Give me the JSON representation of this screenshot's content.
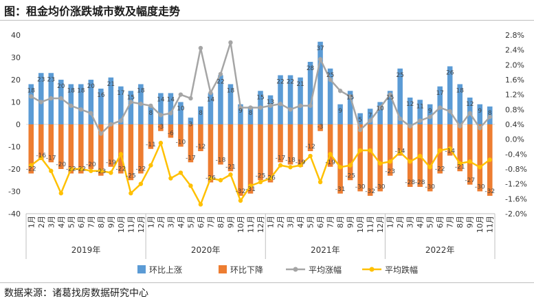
{
  "title": "图：租金均价涨跌城市数及幅度走势",
  "source": "数据来源：诸葛找房数据研究中心",
  "chart_data": {
    "type": "bar+line",
    "categories": [
      "1月",
      "2月",
      "3月",
      "4月",
      "5月",
      "6月",
      "7月",
      "8月",
      "9月",
      "10月",
      "11月",
      "12月",
      "1月",
      "2月",
      "3月",
      "4月",
      "5月",
      "6月",
      "7月",
      "8月",
      "9月",
      "10月",
      "11月",
      "12月",
      "1月",
      "2月",
      "3月",
      "4月",
      "5月",
      "6月",
      "7月",
      "8月",
      "9月",
      "10月",
      "11月",
      "12月",
      "1月",
      "2月",
      "3月",
      "4月",
      "5月",
      "6月",
      "7月",
      "8月",
      "9月",
      "10月",
      "11月"
    ],
    "year_groups": [
      {
        "label": "2019年",
        "count": 12
      },
      {
        "label": "2020年",
        "count": 12
      },
      {
        "label": "2021年",
        "count": 12
      },
      {
        "label": "2022年",
        "count": 11
      }
    ],
    "left_axis": {
      "min": -40,
      "max": 40,
      "ticks": [
        40,
        30,
        20,
        10,
        0,
        -10,
        -20,
        -30,
        -40
      ]
    },
    "right_axis": {
      "min": -2.0,
      "max": 2.8,
      "ticks": [
        "2.8%",
        "2.4%",
        "2.0%",
        "1.6%",
        "1.2%",
        "0.8%",
        "0.4%",
        "0.0%",
        "-0.4%",
        "-0.8%",
        "-1.2%",
        "-1.6%",
        "-2.0%"
      ]
    },
    "series": [
      {
        "name": "环比上涨",
        "kind": "bar",
        "axis": "left",
        "color": "#5b9bd5",
        "values": [
          18,
          23,
          23,
          20,
          18,
          18,
          20,
          16,
          21,
          17,
          15,
          18,
          8,
          14,
          14,
          10,
          3,
          8,
          14,
          22,
          18,
          9,
          8,
          15,
          13,
          22,
          22,
          21,
          28,
          37,
          25,
          9,
          15,
          5,
          7,
          10,
          15,
          25,
          12,
          11,
          9,
          17,
          26,
          18,
          12,
          9,
          8
        ],
        "labels": [
          "18",
          "23",
          "23",
          "20",
          "18",
          "18",
          "20",
          "16",
          "21",
          "17",
          "15",
          "18",
          "8",
          "14",
          "14",
          "10",
          "3",
          "8",
          "14",
          "22",
          "18",
          "9",
          "8",
          "15",
          "13",
          "22",
          "22",
          "21",
          "28",
          "37",
          "25",
          "9",
          "15",
          "5",
          "7",
          "10",
          "15",
          "25",
          "12",
          "11",
          "9",
          "17",
          "26",
          "18",
          "12",
          "9",
          "8"
        ]
      },
      {
        "name": "环比下降",
        "kind": "bar",
        "axis": "left",
        "color": "#ed7d31",
        "values": [
          -22,
          -16,
          -17,
          -20,
          -22,
          -22,
          -20,
          -23,
          -19,
          -22,
          -25,
          -22,
          -11,
          -3,
          -6,
          -10,
          -17,
          -12,
          -26,
          -18,
          -21,
          -32,
          -31,
          -25,
          -26,
          -17,
          -18,
          -19,
          -12,
          -3,
          -19,
          -31,
          -25,
          -30,
          -32,
          -30,
          -23,
          -14,
          -28,
          -28,
          -30,
          -22,
          -14,
          -21,
          -27,
          -30,
          -32
        ],
        "labels": [
          "-22",
          "-16",
          "-17",
          "-20",
          "-22",
          "-22",
          "-20",
          "-23",
          "-19",
          "-22",
          "-25",
          "-22",
          "-11",
          "-3",
          "-6",
          "-10",
          "-17",
          "-12",
          "-26",
          "-18",
          "-21",
          "-32",
          "-31",
          "-25",
          "-26",
          "-17",
          "-18",
          "-19",
          "-12",
          "-3",
          "-19",
          "-31",
          "-25",
          "-30",
          "-32",
          "-30",
          "-23",
          "-14",
          "-28",
          "-28",
          "-30",
          "-22",
          "-14",
          "-21",
          "-27",
          "-30",
          "-32"
        ]
      },
      {
        "name": "平均涨幅",
        "kind": "line",
        "axis": "right",
        "color": "#a5a5a5",
        "values": [
          1.15,
          1.0,
          1.1,
          1.1,
          0.9,
          0.8,
          0.7,
          0.15,
          0.4,
          0.5,
          1.0,
          0.95,
          0.9,
          0.65,
          0.7,
          1.2,
          1.1,
          2.45,
          1.25,
          1.75,
          2.6,
          0.85,
          0.85,
          0.85,
          0.9,
          0.95,
          0.8,
          0.9,
          0.9,
          2.15,
          1.6,
          1.3,
          1.15,
          0.25,
          0.5,
          0.85,
          1.2,
          0.55,
          0.35,
          0.5,
          0.6,
          0.85,
          0.75,
          0.35,
          0.7,
          0.3,
          0.6
        ]
      },
      {
        "name": "平均跌幅",
        "kind": "line",
        "axis": "right",
        "color": "#ffc000",
        "values": [
          -0.7,
          -0.5,
          -0.85,
          -1.45,
          -0.8,
          -0.8,
          -0.85,
          -0.85,
          -0.9,
          -0.4,
          -1.45,
          -1.2,
          -0.7,
          -0.1,
          -1.05,
          -0.9,
          -1.25,
          -1.75,
          -1.05,
          -1.1,
          -0.95,
          -1.65,
          -1.25,
          -1.15,
          -1.05,
          -0.7,
          -0.75,
          -0.7,
          -0.45,
          -1.15,
          -0.4,
          -0.75,
          -0.7,
          -0.3,
          -0.3,
          -0.65,
          -0.6,
          -0.35,
          -0.6,
          -0.45,
          -0.75,
          -0.3,
          -0.25,
          -0.65,
          -0.6,
          -0.75,
          -0.55
        ]
      }
    ],
    "legend_position": "bottom",
    "grid": false
  }
}
